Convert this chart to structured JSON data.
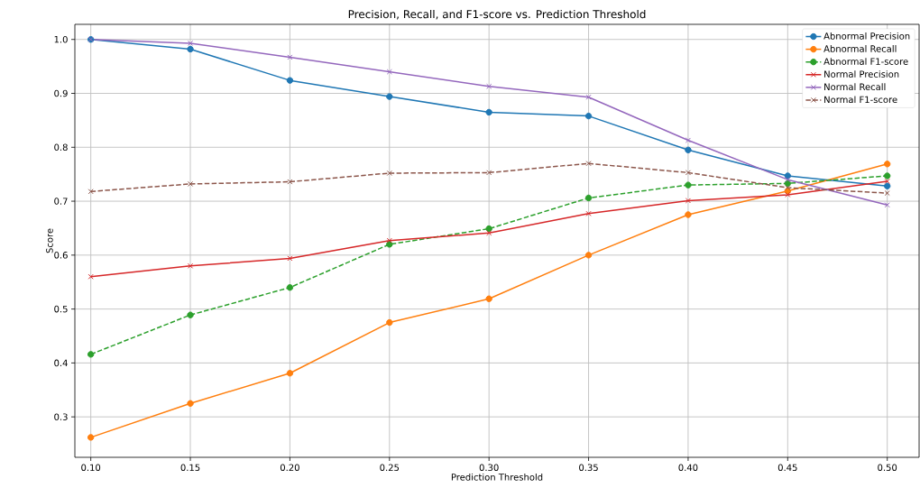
{
  "chart_data": {
    "type": "line",
    "title": "Precision, Recall, and F1-score vs. Prediction Threshold",
    "xlabel": "Prediction Threshold",
    "ylabel": "Score",
    "x": [
      0.1,
      0.15,
      0.2,
      0.25,
      0.3,
      0.35,
      0.4,
      0.45,
      0.5
    ],
    "series": [
      {
        "name": "Abnormal Precision",
        "color": "#1f77b4",
        "marker": "circle",
        "line_style": "solid",
        "values": [
          1.0,
          0.982,
          0.924,
          0.894,
          0.865,
          0.858,
          0.795,
          0.747,
          0.728
        ]
      },
      {
        "name": "Abnormal Recall",
        "color": "#ff7f0e",
        "marker": "circle",
        "line_style": "solid",
        "values": [
          0.262,
          0.325,
          0.381,
          0.475,
          0.519,
          0.6,
          0.675,
          0.719,
          0.769
        ]
      },
      {
        "name": "Abnormal F1-score",
        "color": "#2ca02c",
        "marker": "circle",
        "line_style": "dashed",
        "values": [
          0.416,
          0.489,
          0.54,
          0.62,
          0.649,
          0.706,
          0.73,
          0.733,
          0.747
        ]
      },
      {
        "name": "Normal Precision",
        "color": "#d62728",
        "marker": "cross",
        "line_style": "solid",
        "values": [
          0.56,
          0.58,
          0.594,
          0.627,
          0.641,
          0.677,
          0.701,
          0.712,
          0.737
        ]
      },
      {
        "name": "Normal Recall",
        "color": "#9467bd",
        "marker": "cross",
        "line_style": "solid",
        "values": [
          1.0,
          0.993,
          0.967,
          0.94,
          0.913,
          0.893,
          0.813,
          0.74,
          0.693
        ]
      },
      {
        "name": "Normal F1-score",
        "color": "#8c564b",
        "marker": "cross",
        "line_style": "dashed",
        "values": [
          0.718,
          0.732,
          0.736,
          0.752,
          0.753,
          0.77,
          0.753,
          0.725,
          0.715
        ]
      }
    ],
    "xlim": [
      0.092,
      0.516
    ],
    "ylim": [
      0.225,
      1.028
    ],
    "xticks": [
      {
        "value": 0.1,
        "label": "0.10"
      },
      {
        "value": 0.15,
        "label": "0.15"
      },
      {
        "value": 0.2,
        "label": "0.20"
      },
      {
        "value": 0.25,
        "label": "0.25"
      },
      {
        "value": 0.3,
        "label": "0.30"
      },
      {
        "value": 0.35,
        "label": "0.35"
      },
      {
        "value": 0.4,
        "label": "0.40"
      },
      {
        "value": 0.45,
        "label": "0.45"
      },
      {
        "value": 0.5,
        "label": "0.50"
      }
    ],
    "yticks": [
      {
        "value": 0.3,
        "label": "0.3"
      },
      {
        "value": 0.4,
        "label": "0.4"
      },
      {
        "value": 0.5,
        "label": "0.5"
      },
      {
        "value": 0.6,
        "label": "0.6"
      },
      {
        "value": 0.7,
        "label": "0.7"
      },
      {
        "value": 0.8,
        "label": "0.8"
      },
      {
        "value": 0.9,
        "label": "0.9"
      },
      {
        "value": 1.0,
        "label": "1.0"
      }
    ],
    "grid": true,
    "legend": "top right"
  }
}
